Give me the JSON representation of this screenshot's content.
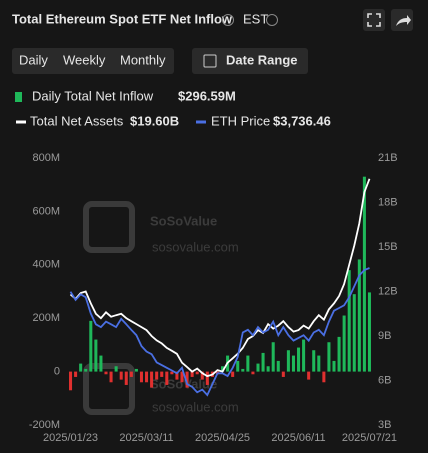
{
  "header": {
    "title": "Total Ethereum Spot ETF Net Inflow",
    "timezone": "EST"
  },
  "tabs": [
    "Daily",
    "Weekly",
    "Monthly"
  ],
  "date_range": "Date Range",
  "watermark": {
    "brand": "SoSoValue",
    "site": "sosovalue.com"
  },
  "chart_data": {
    "type": "bar-line",
    "categories": [
      "2025/01/23",
      null,
      null,
      null,
      null,
      null,
      null,
      null,
      null,
      null,
      null,
      null,
      null,
      null,
      null,
      "2025/03/11",
      null,
      null,
      null,
      null,
      null,
      null,
      null,
      null,
      null,
      null,
      null,
      null,
      null,
      null,
      "2025/04/25",
      null,
      null,
      null,
      null,
      null,
      null,
      null,
      null,
      null,
      null,
      null,
      null,
      null,
      null,
      "2025/06/11",
      null,
      null,
      null,
      null,
      null,
      null,
      null,
      null,
      null,
      null,
      null,
      null,
      null,
      "2025/07/21"
    ],
    "series": [
      {
        "name": "Daily Total Net Inflow",
        "latest": "$296.59M",
        "color": "#1fb85a",
        "negative_color": "#e0302f",
        "type": "bar",
        "values": [
          -70,
          -20,
          30,
          10,
          190,
          120,
          60,
          -10,
          -40,
          20,
          -30,
          -50,
          -20,
          10,
          -40,
          -40,
          -60,
          -30,
          -20,
          -50,
          -10,
          -30,
          -40,
          -60,
          -20,
          -10,
          -30,
          -50,
          -20,
          -10,
          20,
          60,
          -20,
          40,
          10,
          60,
          -10,
          30,
          70,
          20,
          110,
          40,
          -20,
          80,
          60,
          90,
          120,
          -30,
          80,
          60,
          -40,
          110,
          40,
          130,
          210,
          380,
          290,
          420,
          730,
          296.59
        ]
      },
      {
        "name": "Total Net Assets",
        "latest": "$19.60B",
        "color": "#ffffff",
        "type": "line",
        "axis": "y2",
        "values": [
          11.8,
          11.5,
          11.9,
          12.0,
          11.2,
          10.5,
          10.2,
          10.6,
          10.3,
          10.4,
          10.5,
          10.2,
          10.0,
          9.8,
          9.6,
          9.4,
          9.0,
          8.7,
          8.5,
          8.2,
          8.0,
          7.8,
          7.2,
          6.9,
          6.6,
          6.8,
          6.5,
          6.3,
          6.4,
          6.7,
          6.6,
          7.2,
          7.5,
          7.8,
          8.2,
          8.8,
          9.0,
          9.4,
          9.2,
          9.8,
          9.5,
          9.7,
          10.0,
          9.6,
          9.3,
          9.4,
          9.7,
          9.5,
          10.0,
          10.4,
          10.1,
          10.8,
          11.2,
          11.7,
          12.5,
          13.8,
          15.1,
          16.6,
          18.7,
          19.6
        ]
      },
      {
        "name": "ETH Price",
        "latest": "$3,736.46",
        "color": "#4a6fe3",
        "type": "line",
        "axis": "none",
        "values": [
          3300,
          3150,
          3250,
          3200,
          2900,
          2700,
          2650,
          2750,
          2700,
          2650,
          2800,
          2700,
          2600,
          2500,
          2300,
          2200,
          2150,
          2000,
          1950,
          1900,
          1850,
          1800,
          1900,
          1600,
          1550,
          1450,
          1500,
          1400,
          1600,
          1800,
          1800,
          1750,
          1900,
          2100,
          2550,
          2600,
          2500,
          2650,
          2550,
          2600,
          2750,
          2500,
          2650,
          2500,
          2400,
          2450,
          2500,
          2400,
          2550,
          2600,
          2500,
          2750,
          2950,
          3000,
          3050,
          3200,
          3400,
          3600,
          3700,
          3736.46
        ]
      }
    ],
    "ylim": [
      -200,
      800
    ],
    "yticks": [
      {
        "value": 800,
        "label": "800M"
      },
      {
        "value": 600,
        "label": "600M"
      },
      {
        "value": 400,
        "label": "400M"
      },
      {
        "value": 200,
        "label": "200M"
      },
      0,
      {
        "value": -200,
        "label": "-200M"
      }
    ],
    "y2lim": [
      3,
      21
    ],
    "y2ticks": [
      {
        "value": 21,
        "label": "21B"
      },
      {
        "value": 18,
        "label": "18B"
      },
      {
        "value": 15,
        "label": "15B"
      },
      {
        "value": 12,
        "label": "12B"
      },
      {
        "value": 9,
        "label": "9B"
      },
      {
        "value": 6,
        "label": "6B"
      },
      {
        "value": 3,
        "label": "3B"
      }
    ],
    "grid": false
  }
}
